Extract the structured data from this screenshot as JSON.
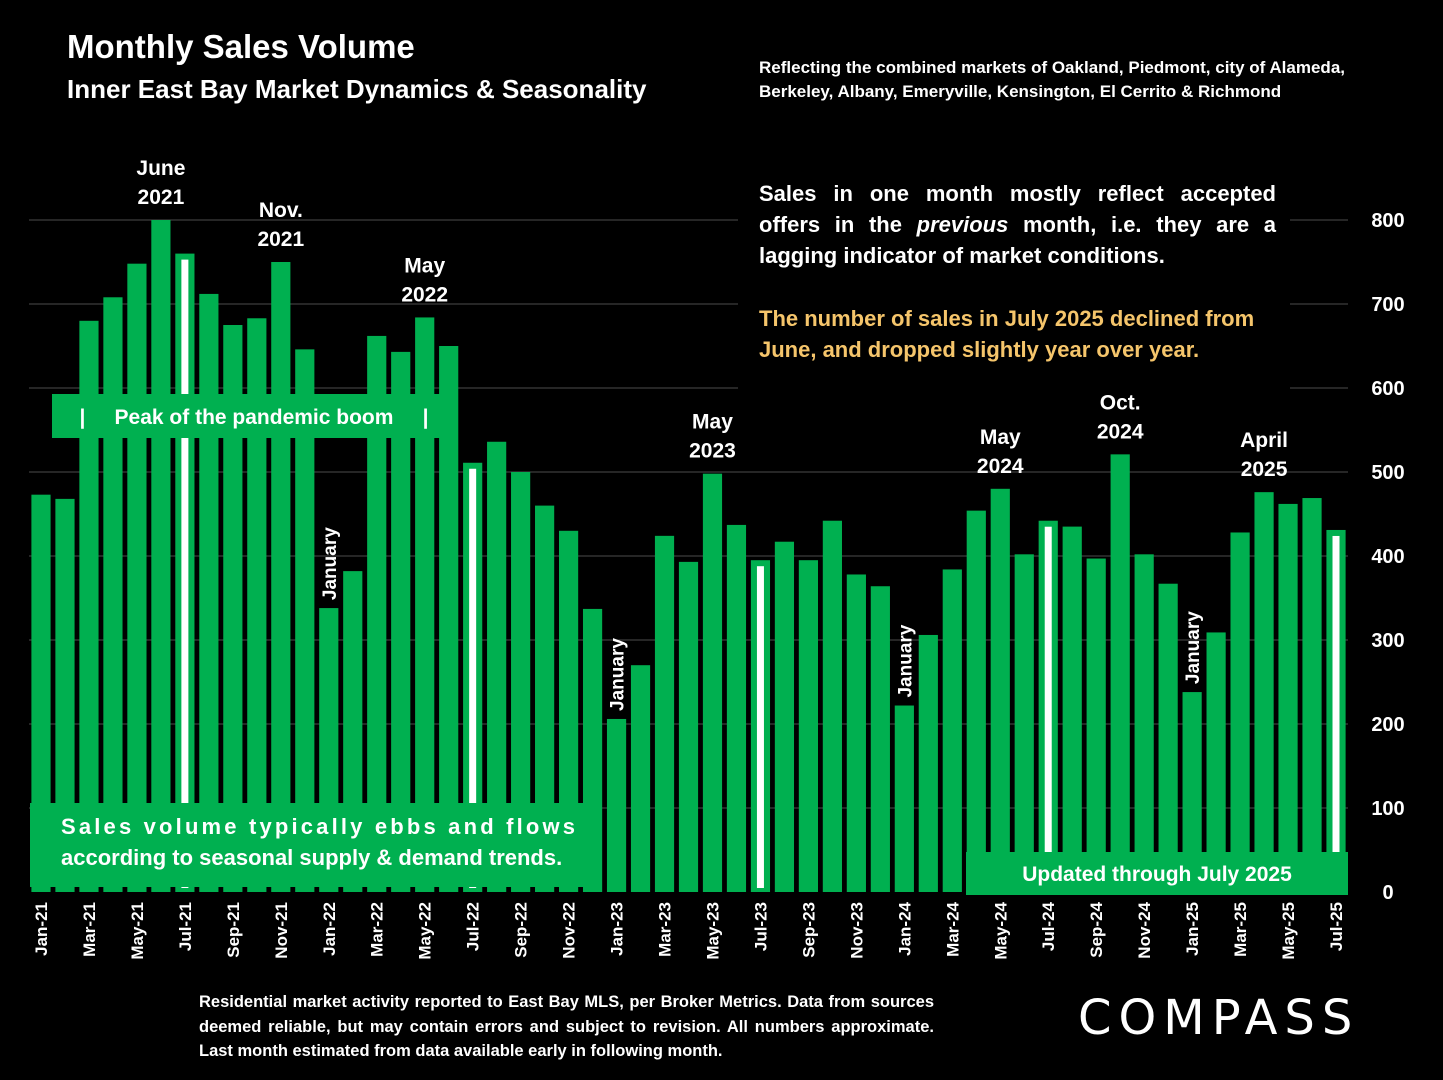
{
  "title": "Monthly Sales Volume",
  "subtitle": "Inner East Bay Market Dynamics & Seasonality",
  "region_note": "Reflecting the combined markets of Oakland, Piedmont, city of Alameda, Berkeley, Albany, Emeryville, Kensington, El Cerrito & Richmond",
  "lag_note": "Sales in one month mostly reflect accepted offers in the previous month, i.e. they are a lagging indicator of market conditions.",
  "highlight_note": "The number of sales in July 2025 declined from June, and dropped slightly year over year.",
  "pandemic_box": "|     Peak of the pandemic boom     |",
  "seasonal_box": [
    "Sales volume typically ebbs and flows",
    "according to seasonal supply & demand trends."
  ],
  "updated_box": "Updated through July 2025",
  "footnote": "Residential market activity reported to East Bay MLS, per Broker Metrics. Data from sources deemed reliable, but may contain errors and subject to revision. All numbers approximate. Last month estimated from data available early in following month.",
  "logo": "COMPASS",
  "colors": {
    "bar": "#00b050",
    "background": "#000000",
    "highlight": "#f5c56b",
    "marker": "#ffffff"
  },
  "chart_data": {
    "type": "bar",
    "categories": [
      "Jan-21",
      "Feb-21",
      "Mar-21",
      "Apr-21",
      "May-21",
      "Jun-21",
      "Jul-21",
      "Aug-21",
      "Sep-21",
      "Oct-21",
      "Nov-21",
      "Dec-21",
      "Jan-22",
      "Feb-22",
      "Mar-22",
      "Apr-22",
      "May-22",
      "Jun-22",
      "Jul-22",
      "Aug-22",
      "Sep-22",
      "Oct-22",
      "Nov-22",
      "Dec-22",
      "Jan-23",
      "Feb-23",
      "Mar-23",
      "Apr-23",
      "May-23",
      "Jun-23",
      "Jul-23",
      "Aug-23",
      "Sep-23",
      "Oct-23",
      "Nov-23",
      "Dec-23",
      "Jan-24",
      "Feb-24",
      "Mar-24",
      "Apr-24",
      "May-24",
      "Jun-24",
      "Jul-24",
      "Aug-24",
      "Sep-24",
      "Oct-24",
      "Nov-24",
      "Dec-24",
      "Jan-25",
      "Feb-25",
      "Mar-25",
      "Apr-25",
      "May-25",
      "Jun-25",
      "Jul-25"
    ],
    "tick_labels": [
      "Jan-21",
      "",
      "Mar-21",
      "",
      "May-21",
      "",
      "Jul-21",
      "",
      "Sep-21",
      "",
      "Nov-21",
      "",
      "Jan-22",
      "",
      "Mar-22",
      "",
      "May-22",
      "",
      "Jul-22",
      "",
      "Sep-22",
      "",
      "Nov-22",
      "",
      "Jan-23",
      "",
      "Mar-23",
      "",
      "May-23",
      "",
      "Jul-23",
      "",
      "Sep-23",
      "",
      "Nov-23",
      "",
      "Jan-24",
      "",
      "Mar-24",
      "",
      "May-24",
      "",
      "Jul-24",
      "",
      "Sep-24",
      "",
      "Nov-24",
      "",
      "Jan-25",
      "",
      "Mar-25",
      "",
      "May-25",
      "",
      "Jul-25"
    ],
    "values": [
      473,
      468,
      680,
      708,
      748,
      800,
      760,
      712,
      675,
      683,
      750,
      646,
      338,
      382,
      662,
      643,
      684,
      650,
      511,
      536,
      500,
      460,
      430,
      337,
      206,
      270,
      424,
      393,
      498,
      437,
      395,
      417,
      395,
      442,
      378,
      364,
      222,
      306,
      384,
      454,
      480,
      402,
      442,
      435,
      397,
      521,
      402,
      367,
      238,
      309,
      428,
      476,
      462,
      469,
      431
    ],
    "marker_months": [
      "Jul-21",
      "Jul-22",
      "Jul-23",
      "Jul-24",
      "Jul-25"
    ],
    "ylim": [
      0,
      800
    ],
    "yticks": [
      0,
      100,
      200,
      300,
      400,
      500,
      600,
      700,
      800
    ],
    "y_axis_side": "right",
    "grid": true,
    "annotations": [
      {
        "at": "Jun-21",
        "lines": [
          "June",
          "2021"
        ]
      },
      {
        "at": "Nov-21",
        "lines": [
          "Nov.",
          "2021"
        ]
      },
      {
        "at": "May-22",
        "lines": [
          "May",
          "2022"
        ]
      },
      {
        "at": "May-23",
        "lines": [
          "May",
          "2023"
        ]
      },
      {
        "at": "May-24",
        "lines": [
          "May",
          "2024"
        ]
      },
      {
        "at": "Oct-24",
        "lines": [
          "Oct.",
          "2024"
        ]
      },
      {
        "at": "Apr-25",
        "lines": [
          "April",
          "2025"
        ]
      }
    ],
    "january_labels": [
      {
        "at": "Jan-22",
        "text": "January"
      },
      {
        "at": "Jan-23",
        "text": "January"
      },
      {
        "at": "Jan-24",
        "text": "January"
      },
      {
        "at": "Jan-25",
        "text": "January"
      }
    ]
  }
}
